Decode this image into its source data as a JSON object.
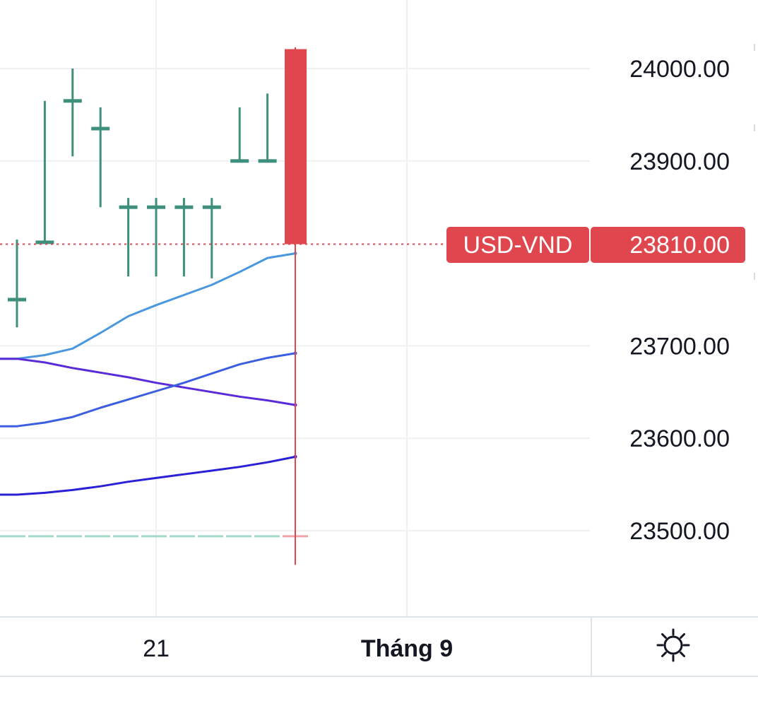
{
  "chart_data": {
    "type": "ohlc",
    "symbol": "USD-VND",
    "last_price": 23810.0,
    "last_price_label": "23810.00",
    "y_ticks": [
      24000,
      23900,
      23700,
      23600,
      23500
    ],
    "y_tick_labels": [
      "24000.00",
      "23900.00",
      "23700.00",
      "23600.00",
      "23500.00"
    ],
    "x_tick_labels": [
      "21",
      "Tháng 9"
    ],
    "ylim": [
      23430,
      24080
    ],
    "grid": true,
    "candles": [
      {
        "o": 23750,
        "h": 23815,
        "l": 23720,
        "c": 23750
      },
      {
        "o": 23812,
        "h": 23965,
        "l": 23812,
        "c": 23812
      },
      {
        "o": 23965,
        "h": 24000,
        "l": 23905,
        "c": 23965
      },
      {
        "o": 23935,
        "h": 23958,
        "l": 23850,
        "c": 23935
      },
      {
        "o": 23850,
        "h": 23860,
        "l": 23775,
        "c": 23850
      },
      {
        "o": 23850,
        "h": 23860,
        "l": 23775,
        "c": 23850
      },
      {
        "o": 23850,
        "h": 23860,
        "l": 23775,
        "c": 23850
      },
      {
        "o": 23850,
        "h": 23860,
        "l": 23773,
        "c": 23850
      },
      {
        "o": 23900,
        "h": 23958,
        "l": 23900,
        "c": 23900
      },
      {
        "o": 23900,
        "h": 23973,
        "l": 23900,
        "c": 23900
      },
      {
        "o": 24021,
        "h": 24023,
        "l": 23463,
        "c": 23810
      }
    ],
    "series": [
      {
        "color": "#4a97e0",
        "values": [
          23686,
          23690,
          23697,
          23714,
          23732,
          23744,
          23755,
          23766,
          23780,
          23795,
          23800
        ]
      },
      {
        "color": "#5a2bd9",
        "values": [
          23686,
          23682,
          23676,
          23671,
          23666,
          23660,
          23655,
          23650,
          23645,
          23641,
          23636
        ]
      },
      {
        "color": "#3b5fe0",
        "values": [
          23613,
          23617,
          23623,
          23633,
          23642,
          23651,
          23660,
          23670,
          23680,
          23687,
          23692
        ]
      },
      {
        "color": "#2a20d6",
        "values": [
          23539,
          23541,
          23544,
          23548,
          23553,
          23557,
          23561,
          23565,
          23569,
          23574,
          23580
        ]
      }
    ],
    "baseline": {
      "value": 23494,
      "color": "#a7d8cc"
    },
    "colors": {
      "up": "#3f8f7d",
      "down": "#e0464e",
      "grid": "#eef0f3",
      "axis_text": "#131722"
    }
  },
  "icons": {
    "settings": "settings-sun-icon"
  }
}
